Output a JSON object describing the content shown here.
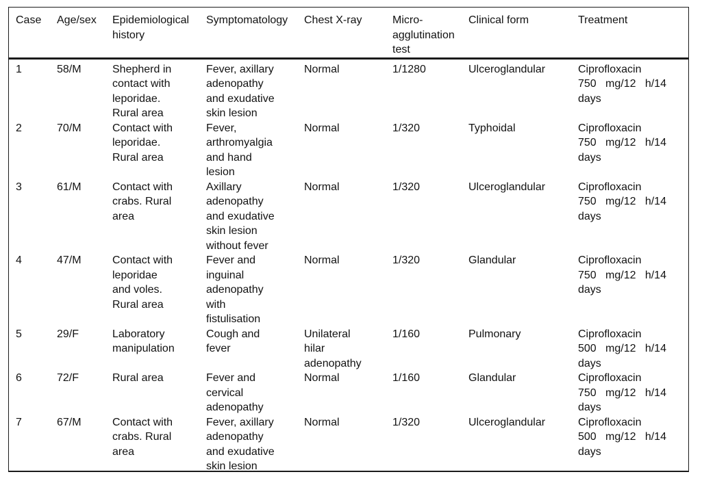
{
  "table": {
    "columns": [
      {
        "label": "Case"
      },
      {
        "label": "Age/sex"
      },
      {
        "label": "Epidemiological\nhistory"
      },
      {
        "label": "Symptomatology"
      },
      {
        "label": "Chest X-ray"
      },
      {
        "label": "Micro-\nagglutination\ntest"
      },
      {
        "label": "Clinical form"
      },
      {
        "label": "Treatment"
      }
    ],
    "rows": [
      {
        "case": "1",
        "age_sex": "58/M",
        "epidemiological_history": "Shepherd in\ncontact with\nleporidae.\nRural area",
        "symptomatology": "Fever, axillary\nadenopathy\nand exudative\nskin lesion",
        "chest_xray": "Normal",
        "microagglutination_test": "1/1280",
        "clinical_form": "Ulceroglandular",
        "treatment": "Ciprofloxacin\n750   mg/12   h/14\ndays"
      },
      {
        "case": "2",
        "age_sex": "70/M",
        "epidemiological_history": "Contact with\nleporidae.\nRural area",
        "symptomatology": "Fever,\narthromyalgia\nand hand\nlesion",
        "chest_xray": "Normal",
        "microagglutination_test": "1/320",
        "clinical_form": "Typhoidal",
        "treatment": "Ciprofloxacin\n750   mg/12   h/14\ndays"
      },
      {
        "case": "3",
        "age_sex": "61/M",
        "epidemiological_history": "Contact with\ncrabs. Rural\narea",
        "symptomatology": "Axillary\nadenopathy\nand exudative\nskin lesion\nwithout fever",
        "chest_xray": "Normal",
        "microagglutination_test": "1/320",
        "clinical_form": "Ulceroglandular",
        "treatment": "Ciprofloxacin\n750   mg/12   h/14\ndays"
      },
      {
        "case": "4",
        "age_sex": "47/M",
        "epidemiological_history": "Contact with\nleporidae\nand voles.\nRural area",
        "symptomatology": "Fever and\ninguinal\nadenopathy\nwith\nfistulisation",
        "chest_xray": "Normal",
        "microagglutination_test": "1/320",
        "clinical_form": "Glandular",
        "treatment": "Ciprofloxacin\n750   mg/12   h/14\ndays"
      },
      {
        "case": "5",
        "age_sex": "29/F",
        "epidemiological_history": "Laboratory\nmanipulation",
        "symptomatology": "Cough and\nfever",
        "chest_xray": "Unilateral\nhilar\nadenopathy",
        "microagglutination_test": "1/160",
        "clinical_form": "Pulmonary",
        "treatment": "Ciprofloxacin\n500   mg/12   h/14\ndays"
      },
      {
        "case": "6",
        "age_sex": "72/F",
        "epidemiological_history": "Rural area",
        "symptomatology": "Fever and\ncervical\nadenopathy",
        "chest_xray": "Normal",
        "microagglutination_test": "1/160",
        "clinical_form": "Glandular",
        "treatment": "Ciprofloxacin\n750   mg/12   h/14\ndays"
      },
      {
        "case": "7",
        "age_sex": "67/M",
        "epidemiological_history": "Contact with\ncrabs. Rural\narea",
        "symptomatology": "Fever, axillary\nadenopathy\nand exudative\nskin lesion",
        "chest_xray": "Normal",
        "microagglutination_test": "1/320",
        "clinical_form": "Ulceroglandular",
        "treatment": "Ciprofloxacin\n500   mg/12   h/14\ndays"
      }
    ]
  }
}
